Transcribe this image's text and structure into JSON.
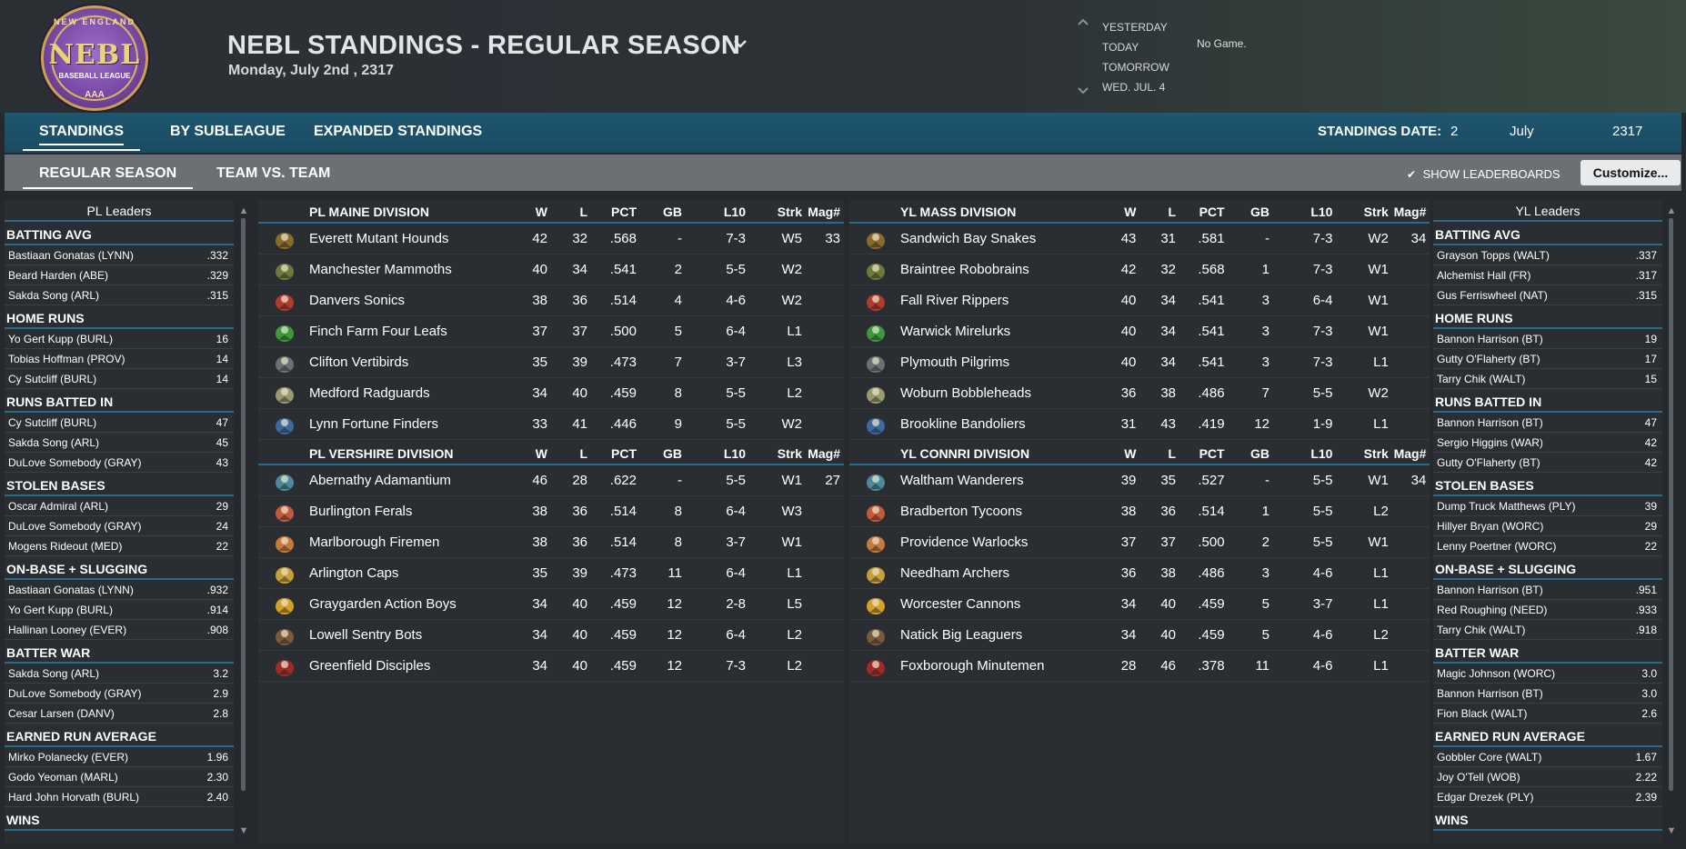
{
  "header": {
    "logo": {
      "top_text": "NEW ENGLAND",
      "main": "NEBL",
      "sub": "BASEBALL LEAGUE",
      "bottom": "AAA"
    },
    "title": "NEBL STANDINGS - REGULAR SEASON",
    "subtitle": "Monday, July 2nd , 2317",
    "days": [
      "YESTERDAY",
      "TODAY",
      "TOMORROW",
      "WED. JUL. 4"
    ],
    "today_status": "No Game."
  },
  "tabs": {
    "primary": [
      "STANDINGS",
      "BY SUBLEAGUE",
      "EXPANDED STANDINGS"
    ],
    "active_primary": "STANDINGS",
    "secondary": [
      "REGULAR SEASON",
      "TEAM VS. TEAM"
    ],
    "active_secondary": "REGULAR SEASON"
  },
  "standings_date": {
    "label": "STANDINGS DATE:",
    "day": "2",
    "month": "July",
    "year": "2317"
  },
  "show_leaderboards": {
    "label": "SHOW LEADERBOARDS",
    "checked": true
  },
  "customize_label": "Customize...",
  "leaders": {
    "pl": {
      "title": "PL Leaders",
      "categories": [
        {
          "name": "BATTING AVG",
          "rows": [
            [
              "Bastiaan Gonatas (LYNN)",
              ".332"
            ],
            [
              "Beard Harden (ABE)",
              ".329"
            ],
            [
              "Sakda Song (ARL)",
              ".315"
            ]
          ]
        },
        {
          "name": "HOME RUNS",
          "rows": [
            [
              "Yo Gert Kupp (BURL)",
              "16"
            ],
            [
              "Tobias Hoffman (PROV)",
              "14"
            ],
            [
              "Cy Sutcliff (BURL)",
              "14"
            ]
          ]
        },
        {
          "name": "RUNS BATTED IN",
          "rows": [
            [
              "Cy Sutcliff (BURL)",
              "47"
            ],
            [
              "Sakda Song (ARL)",
              "45"
            ],
            [
              "DuLove Somebody (GRAY)",
              "43"
            ]
          ]
        },
        {
          "name": "STOLEN BASES",
          "rows": [
            [
              "Oscar Admiral (ARL)",
              "29"
            ],
            [
              "DuLove Somebody (GRAY)",
              "24"
            ],
            [
              "Mogens Rideout (MED)",
              "22"
            ]
          ]
        },
        {
          "name": "ON-BASE + SLUGGING",
          "rows": [
            [
              "Bastiaan Gonatas (LYNN)",
              ".932"
            ],
            [
              "Yo Gert Kupp (BURL)",
              ".914"
            ],
            [
              "Hallinan Looney (EVER)",
              ".908"
            ]
          ]
        },
        {
          "name": "BATTER WAR",
          "rows": [
            [
              "Sakda Song (ARL)",
              "3.2"
            ],
            [
              "DuLove Somebody (GRAY)",
              "2.9"
            ],
            [
              "Cesar Larsen (DANV)",
              "2.8"
            ]
          ]
        },
        {
          "name": "EARNED RUN AVERAGE",
          "rows": [
            [
              "Mirko Polanecky (EVER)",
              "1.96"
            ],
            [
              "Godo Yeoman (MARL)",
              "2.30"
            ],
            [
              "Hard John Horvath (BURL)",
              "2.40"
            ]
          ]
        },
        {
          "name": "WINS",
          "rows": []
        }
      ]
    },
    "yl": {
      "title": "YL Leaders",
      "categories": [
        {
          "name": "BATTING AVG",
          "rows": [
            [
              "Grayson Topps (WALT)",
              ".337"
            ],
            [
              "Alchemist Hall (FR)",
              ".317"
            ],
            [
              "Gus Ferriswheel (NAT)",
              ".315"
            ]
          ]
        },
        {
          "name": "HOME RUNS",
          "rows": [
            [
              "Bannon Harrison (BT)",
              "19"
            ],
            [
              "Gutty O'Flaherty (BT)",
              "17"
            ],
            [
              "Tarry Chik (WALT)",
              "15"
            ]
          ]
        },
        {
          "name": "RUNS BATTED IN",
          "rows": [
            [
              "Bannon Harrison (BT)",
              "47"
            ],
            [
              "Sergio Higgins (WAR)",
              "42"
            ],
            [
              "Gutty O'Flaherty (BT)",
              "42"
            ]
          ]
        },
        {
          "name": "STOLEN BASES",
          "rows": [
            [
              "Dump Truck Matthews (PLY)",
              "39"
            ],
            [
              "Hillyer Bryan (WORC)",
              "29"
            ],
            [
              "Lenny Poertner (WORC)",
              "22"
            ]
          ]
        },
        {
          "name": "ON-BASE + SLUGGING",
          "rows": [
            [
              "Bannon Harrison (BT)",
              ".951"
            ],
            [
              "Red Roughing (NEED)",
              ".933"
            ],
            [
              "Tarry Chik (WALT)",
              ".918"
            ]
          ]
        },
        {
          "name": "BATTER WAR",
          "rows": [
            [
              "Magic Johnson (WORC)",
              "3.0"
            ],
            [
              "Bannon Harrison (BT)",
              "3.0"
            ],
            [
              "Fion Black (WALT)",
              "2.6"
            ]
          ]
        },
        {
          "name": "EARNED RUN AVERAGE",
          "rows": [
            [
              "Gobbler Core (WALT)",
              "1.67"
            ],
            [
              "Joy O'Tell (WOB)",
              "2.22"
            ],
            [
              "Edgar Drezek (PLY)",
              "2.39"
            ]
          ]
        },
        {
          "name": "WINS",
          "rows": []
        }
      ]
    }
  },
  "columns": [
    "W",
    "L",
    "PCT",
    "GB",
    "L10",
    "Strk",
    "Mag#"
  ],
  "divisions": [
    {
      "name": "PL MAINE DIVISION",
      "mag": "33",
      "color": "#5a3a1a",
      "teams": [
        [
          "Everett Mutant Hounds",
          "42",
          "32",
          ".568",
          "-",
          "7-3",
          "W5"
        ],
        [
          "Manchester Mammoths",
          "40",
          "34",
          ".541",
          "2",
          "5-5",
          "W2"
        ],
        [
          "Danvers Sonics",
          "38",
          "36",
          ".514",
          "4",
          "4-6",
          "W2"
        ],
        [
          "Finch Farm Four Leafs",
          "37",
          "37",
          ".500",
          "5",
          "6-4",
          "L1"
        ],
        [
          "Clifton Vertibirds",
          "35",
          "39",
          ".473",
          "7",
          "3-7",
          "L3"
        ],
        [
          "Medford Radguards",
          "34",
          "40",
          ".459",
          "8",
          "5-5",
          "L2"
        ],
        [
          "Lynn Fortune Finders",
          "33",
          "41",
          ".446",
          "9",
          "5-5",
          "W2"
        ]
      ]
    },
    {
      "name": "PL VERSHIRE DIVISION",
      "mag": "27",
      "teams": [
        [
          "Abernathy Adamantium",
          "46",
          "28",
          ".622",
          "-",
          "5-5",
          "W1"
        ],
        [
          "Burlington Ferals",
          "38",
          "36",
          ".514",
          "8",
          "6-4",
          "W3"
        ],
        [
          "Marlborough Firemen",
          "38",
          "36",
          ".514",
          "8",
          "3-7",
          "W1"
        ],
        [
          "Arlington Caps",
          "35",
          "39",
          ".473",
          "11",
          "6-4",
          "L1"
        ],
        [
          "Graygarden Action Boys",
          "34",
          "40",
          ".459",
          "12",
          "2-8",
          "L5"
        ],
        [
          "Lowell Sentry Bots",
          "34",
          "40",
          ".459",
          "12",
          "6-4",
          "L2"
        ],
        [
          "Greenfield Disciples",
          "34",
          "40",
          ".459",
          "12",
          "7-3",
          "L2"
        ]
      ]
    },
    {
      "name": "YL MASS DIVISION",
      "mag": "34",
      "teams": [
        [
          "Sandwich Bay Snakes",
          "43",
          "31",
          ".581",
          "-",
          "7-3",
          "W2"
        ],
        [
          "Braintree Robobrains",
          "42",
          "32",
          ".568",
          "1",
          "7-3",
          "W1"
        ],
        [
          "Fall River Rippers",
          "40",
          "34",
          ".541",
          "3",
          "6-4",
          "W1"
        ],
        [
          "Warwick Mirelurks",
          "40",
          "34",
          ".541",
          "3",
          "7-3",
          "W1"
        ],
        [
          "Plymouth Pilgrims",
          "40",
          "34",
          ".541",
          "3",
          "7-3",
          "L1"
        ],
        [
          "Woburn Bobbleheads",
          "36",
          "38",
          ".486",
          "7",
          "5-5",
          "W2"
        ],
        [
          "Brookline Bandoliers",
          "31",
          "43",
          ".419",
          "12",
          "1-9",
          "L1"
        ]
      ]
    },
    {
      "name": "YL CONNRI DIVISION",
      "mag": "34",
      "teams": [
        [
          "Waltham Wanderers",
          "39",
          "35",
          ".527",
          "-",
          "5-5",
          "W1"
        ],
        [
          "Bradberton Tycoons",
          "38",
          "36",
          ".514",
          "1",
          "5-5",
          "L2"
        ],
        [
          "Providence Warlocks",
          "37",
          "37",
          ".500",
          "2",
          "5-5",
          "W1"
        ],
        [
          "Needham Archers",
          "36",
          "38",
          ".486",
          "3",
          "4-6",
          "L1"
        ],
        [
          "Worcester Cannons",
          "34",
          "40",
          ".459",
          "5",
          "3-7",
          "L1"
        ],
        [
          "Natick Big Leaguers",
          "34",
          "40",
          ".459",
          "5",
          "4-6",
          "L2"
        ],
        [
          "Foxborough Minutemen",
          "28",
          "46",
          ".378",
          "11",
          "4-6",
          "L1"
        ]
      ]
    }
  ],
  "icon_colors": [
    "#8a6a2a",
    "#6e7a3a",
    "#b33a2a",
    "#3a9a3a",
    "#6a7074",
    "#9a9a70",
    "#3a6aa0",
    "#4a8a9a",
    "#c25a3a",
    "#c87a3a",
    "#c8a03a",
    "#d4a02a",
    "#7a5a3a",
    "#a02a2a"
  ]
}
